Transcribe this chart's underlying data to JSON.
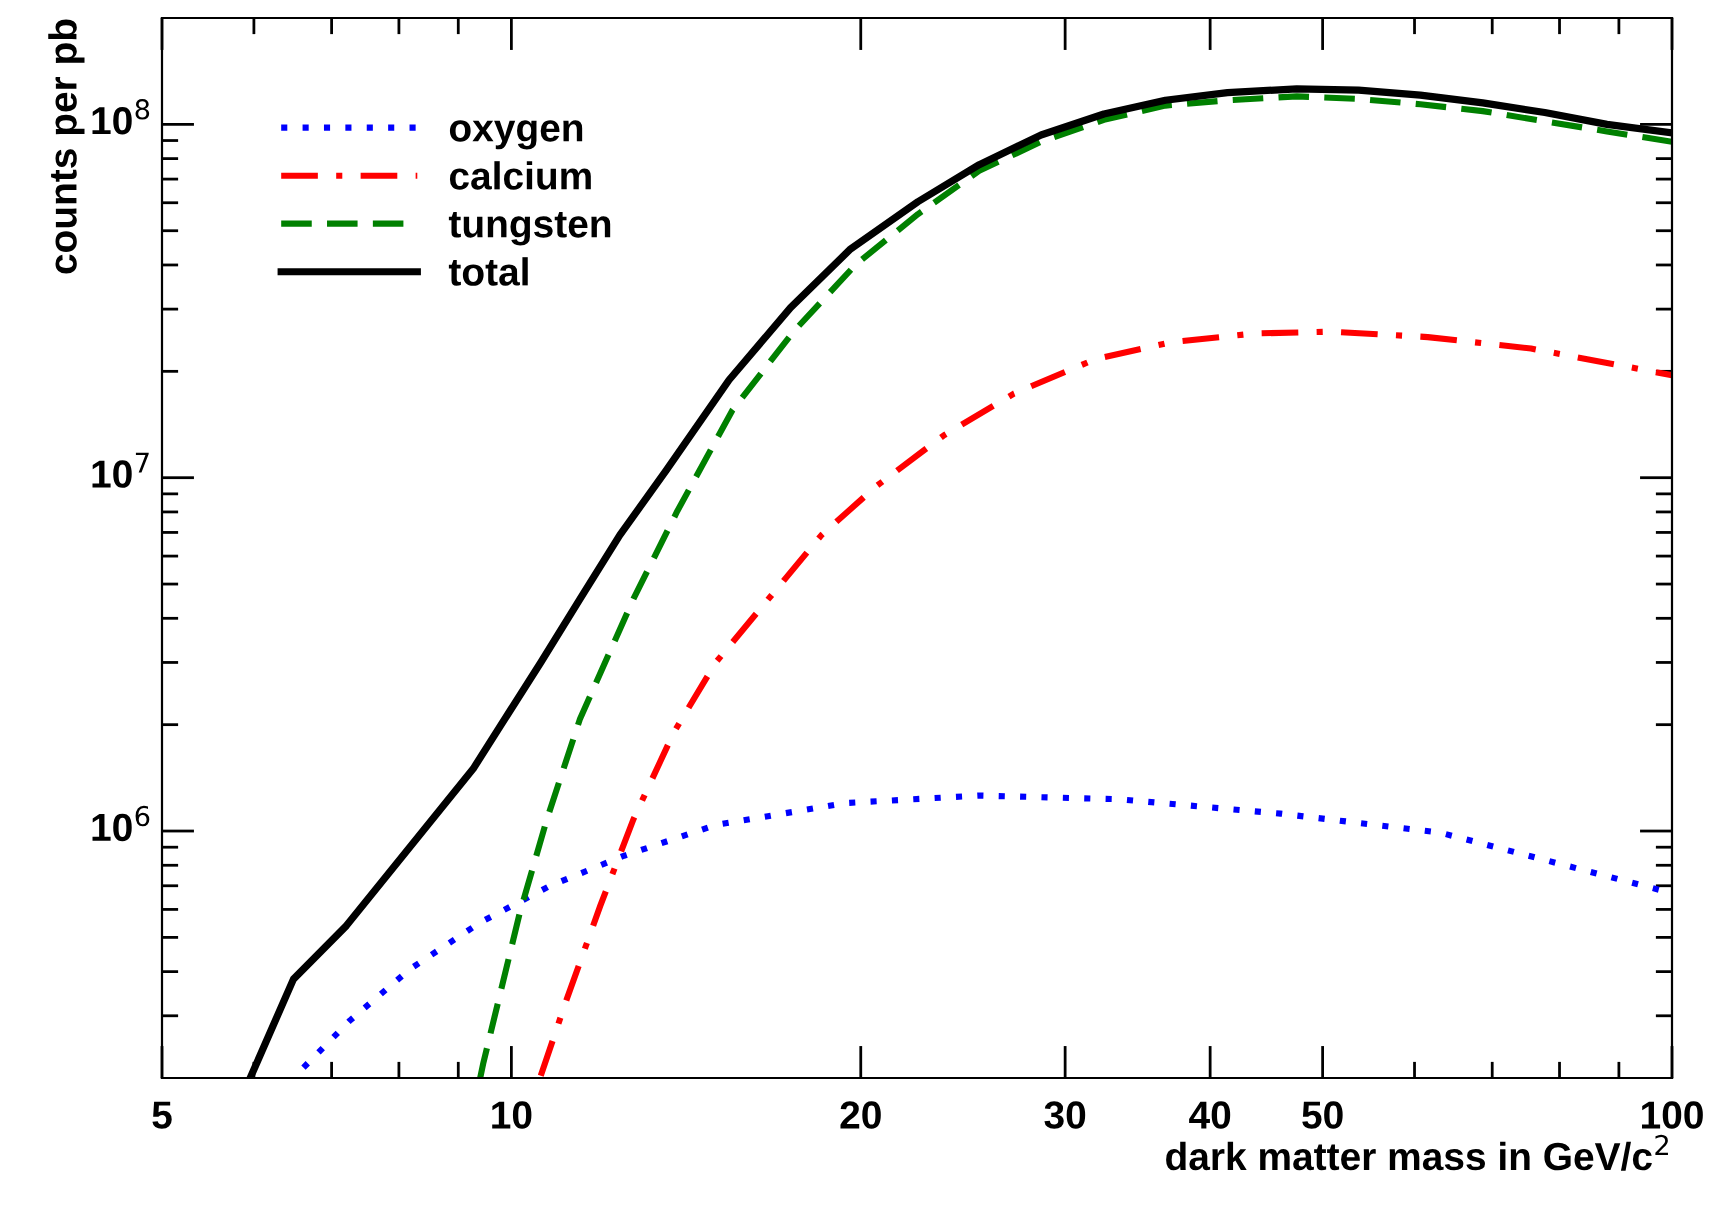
{
  "chart_data": {
    "type": "line",
    "xlabel": "dark matter mass in GeV/c$^{2}$",
    "ylabel": "counts per pb",
    "log": "xy",
    "grid": false,
    "legend": "top left",
    "xlim": [
      5,
      100
    ],
    "ylim": [
      200000,
      200000000
    ],
    "xticks": [
      5,
      {
        "value": 6,
        "label": null
      },
      {
        "value": 7,
        "label": null
      },
      {
        "value": 8,
        "label": null
      },
      {
        "value": 9,
        "label": null
      },
      10,
      20,
      30,
      40,
      50,
      {
        "value": 60,
        "label": null
      },
      {
        "value": 70,
        "label": null
      },
      {
        "value": 80,
        "label": null
      },
      {
        "value": 90,
        "label": null
      },
      100
    ],
    "yticks": [
      {
        "value": 300000,
        "label": null
      },
      {
        "value": 400000,
        "label": null
      },
      {
        "value": 500000,
        "label": null
      },
      {
        "value": 600000,
        "label": null
      },
      {
        "value": 700000,
        "label": null
      },
      {
        "value": 800000,
        "label": null
      },
      {
        "value": 900000,
        "label": null
      },
      {
        "value": 1000000,
        "label": "10$^{6}$"
      },
      {
        "value": 2000000,
        "label": null
      },
      {
        "value": 3000000,
        "label": null
      },
      {
        "value": 4000000,
        "label": null
      },
      {
        "value": 5000000,
        "label": null
      },
      {
        "value": 6000000,
        "label": null
      },
      {
        "value": 7000000,
        "label": null
      },
      {
        "value": 8000000,
        "label": null
      },
      {
        "value": 9000000,
        "label": null
      },
      {
        "value": 10000000,
        "label": "10$^{7}$"
      },
      {
        "value": 20000000,
        "label": null
      },
      {
        "value": 30000000,
        "label": null
      },
      {
        "value": 40000000,
        "label": null
      },
      {
        "value": 50000000,
        "label": null
      },
      {
        "value": 60000000,
        "label": null
      },
      {
        "value": 70000000,
        "label": null
      },
      {
        "value": 80000000,
        "label": null
      },
      {
        "value": 90000000,
        "label": null
      },
      {
        "value": 100000000,
        "label": "10$^{8}$"
      }
    ],
    "series": [
      {
        "name": "oxygen",
        "color": "#0000ff",
        "line_style": "dotted",
        "x": [
          6.62,
          7.26,
          8.18,
          9.4,
          10.8,
          12.5,
          15.0,
          19.4,
          25.3,
          33.4,
          46,
          63.1,
          100
        ],
        "values": [
          214000,
          291000,
          407000,
          551000,
          700000,
          851000,
          1040000,
          1200000,
          1260000,
          1230000,
          1120000,
          990000,
          667000
        ]
      },
      {
        "name": "calcium",
        "color": "#ff0000",
        "line_style": "dashdot",
        "x": [
          10.6,
          11.16,
          11.93,
          12.74,
          13.8,
          15.0,
          18.5,
          20.6,
          23.6,
          27.1,
          31.9,
          37.1,
          43.7,
          50.9,
          61.6,
          75.6,
          100
        ],
        "values": [
          203000,
          334000,
          615000,
          1080000,
          1900000,
          3000000,
          6880000,
          9430000,
          13200000,
          17300000,
          21700000,
          24200000,
          25600000,
          25900000,
          25000000,
          23200000,
          19500000
        ]
      },
      {
        "name": "tungsten",
        "color": "#008000",
        "line_style": "dashed",
        "x": [
          9.4,
          9.46,
          10.17,
          10.73,
          11.46,
          12.74,
          13.9,
          15.5,
          17.5,
          19.8,
          22.4,
          25.3,
          28.6,
          32.4,
          36.6,
          41.4,
          47.5,
          53.7,
          60.7,
          68.7,
          77.7,
          87.9,
          100
        ],
        "values": [
          200000,
          221000,
          588000,
          1080000,
          2080000,
          4540000,
          8050000,
          15500000,
          25900000,
          40100000,
          55700000,
          73900000,
          89300000,
          103000000,
          113000000,
          117000000,
          120000000,
          118000000,
          114000000,
          109000000,
          102000000,
          95500000,
          89300000
        ]
      },
      {
        "name": "total",
        "color": "#000000",
        "line_style": "solid",
        "x": [
          5.96,
          6.49,
          7.21,
          9.27,
          10.6,
          11.46,
          12.4,
          13.6,
          15.4,
          17.4,
          19.6,
          22.4,
          25.3,
          28.6,
          32.4,
          36.6,
          41.4,
          47.5,
          53.7,
          60.7,
          68.7,
          77.7,
          87.9,
          100
        ],
        "values": [
          201000,
          381000,
          540000,
          1500000,
          3000000,
          4540000,
          6880000,
          10500000,
          18900000,
          30300000,
          44400000,
          60400000,
          76900000,
          93300000,
          107000000,
          117000000,
          123000000,
          126000000,
          125000000,
          121000000,
          115000000,
          108000000,
          100000000,
          94600000
        ]
      }
    ]
  }
}
